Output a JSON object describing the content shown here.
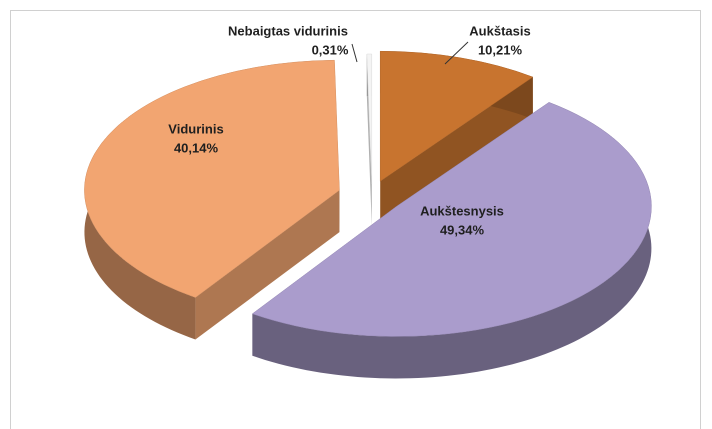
{
  "chart_data": {
    "type": "pie",
    "categories": [
      "Aukštasis",
      "Aukštesnysis",
      "Vidurinis",
      "Nebaigtas vidurinis"
    ],
    "values": [
      10.21,
      49.34,
      40.14,
      0.31
    ],
    "value_labels": [
      "10,21%",
      "49,34%",
      "40,14%",
      "0,31%"
    ],
    "colors": [
      "#c8742f",
      "#aa9ccc",
      "#f2a571",
      "#f4f4f4"
    ]
  }
}
